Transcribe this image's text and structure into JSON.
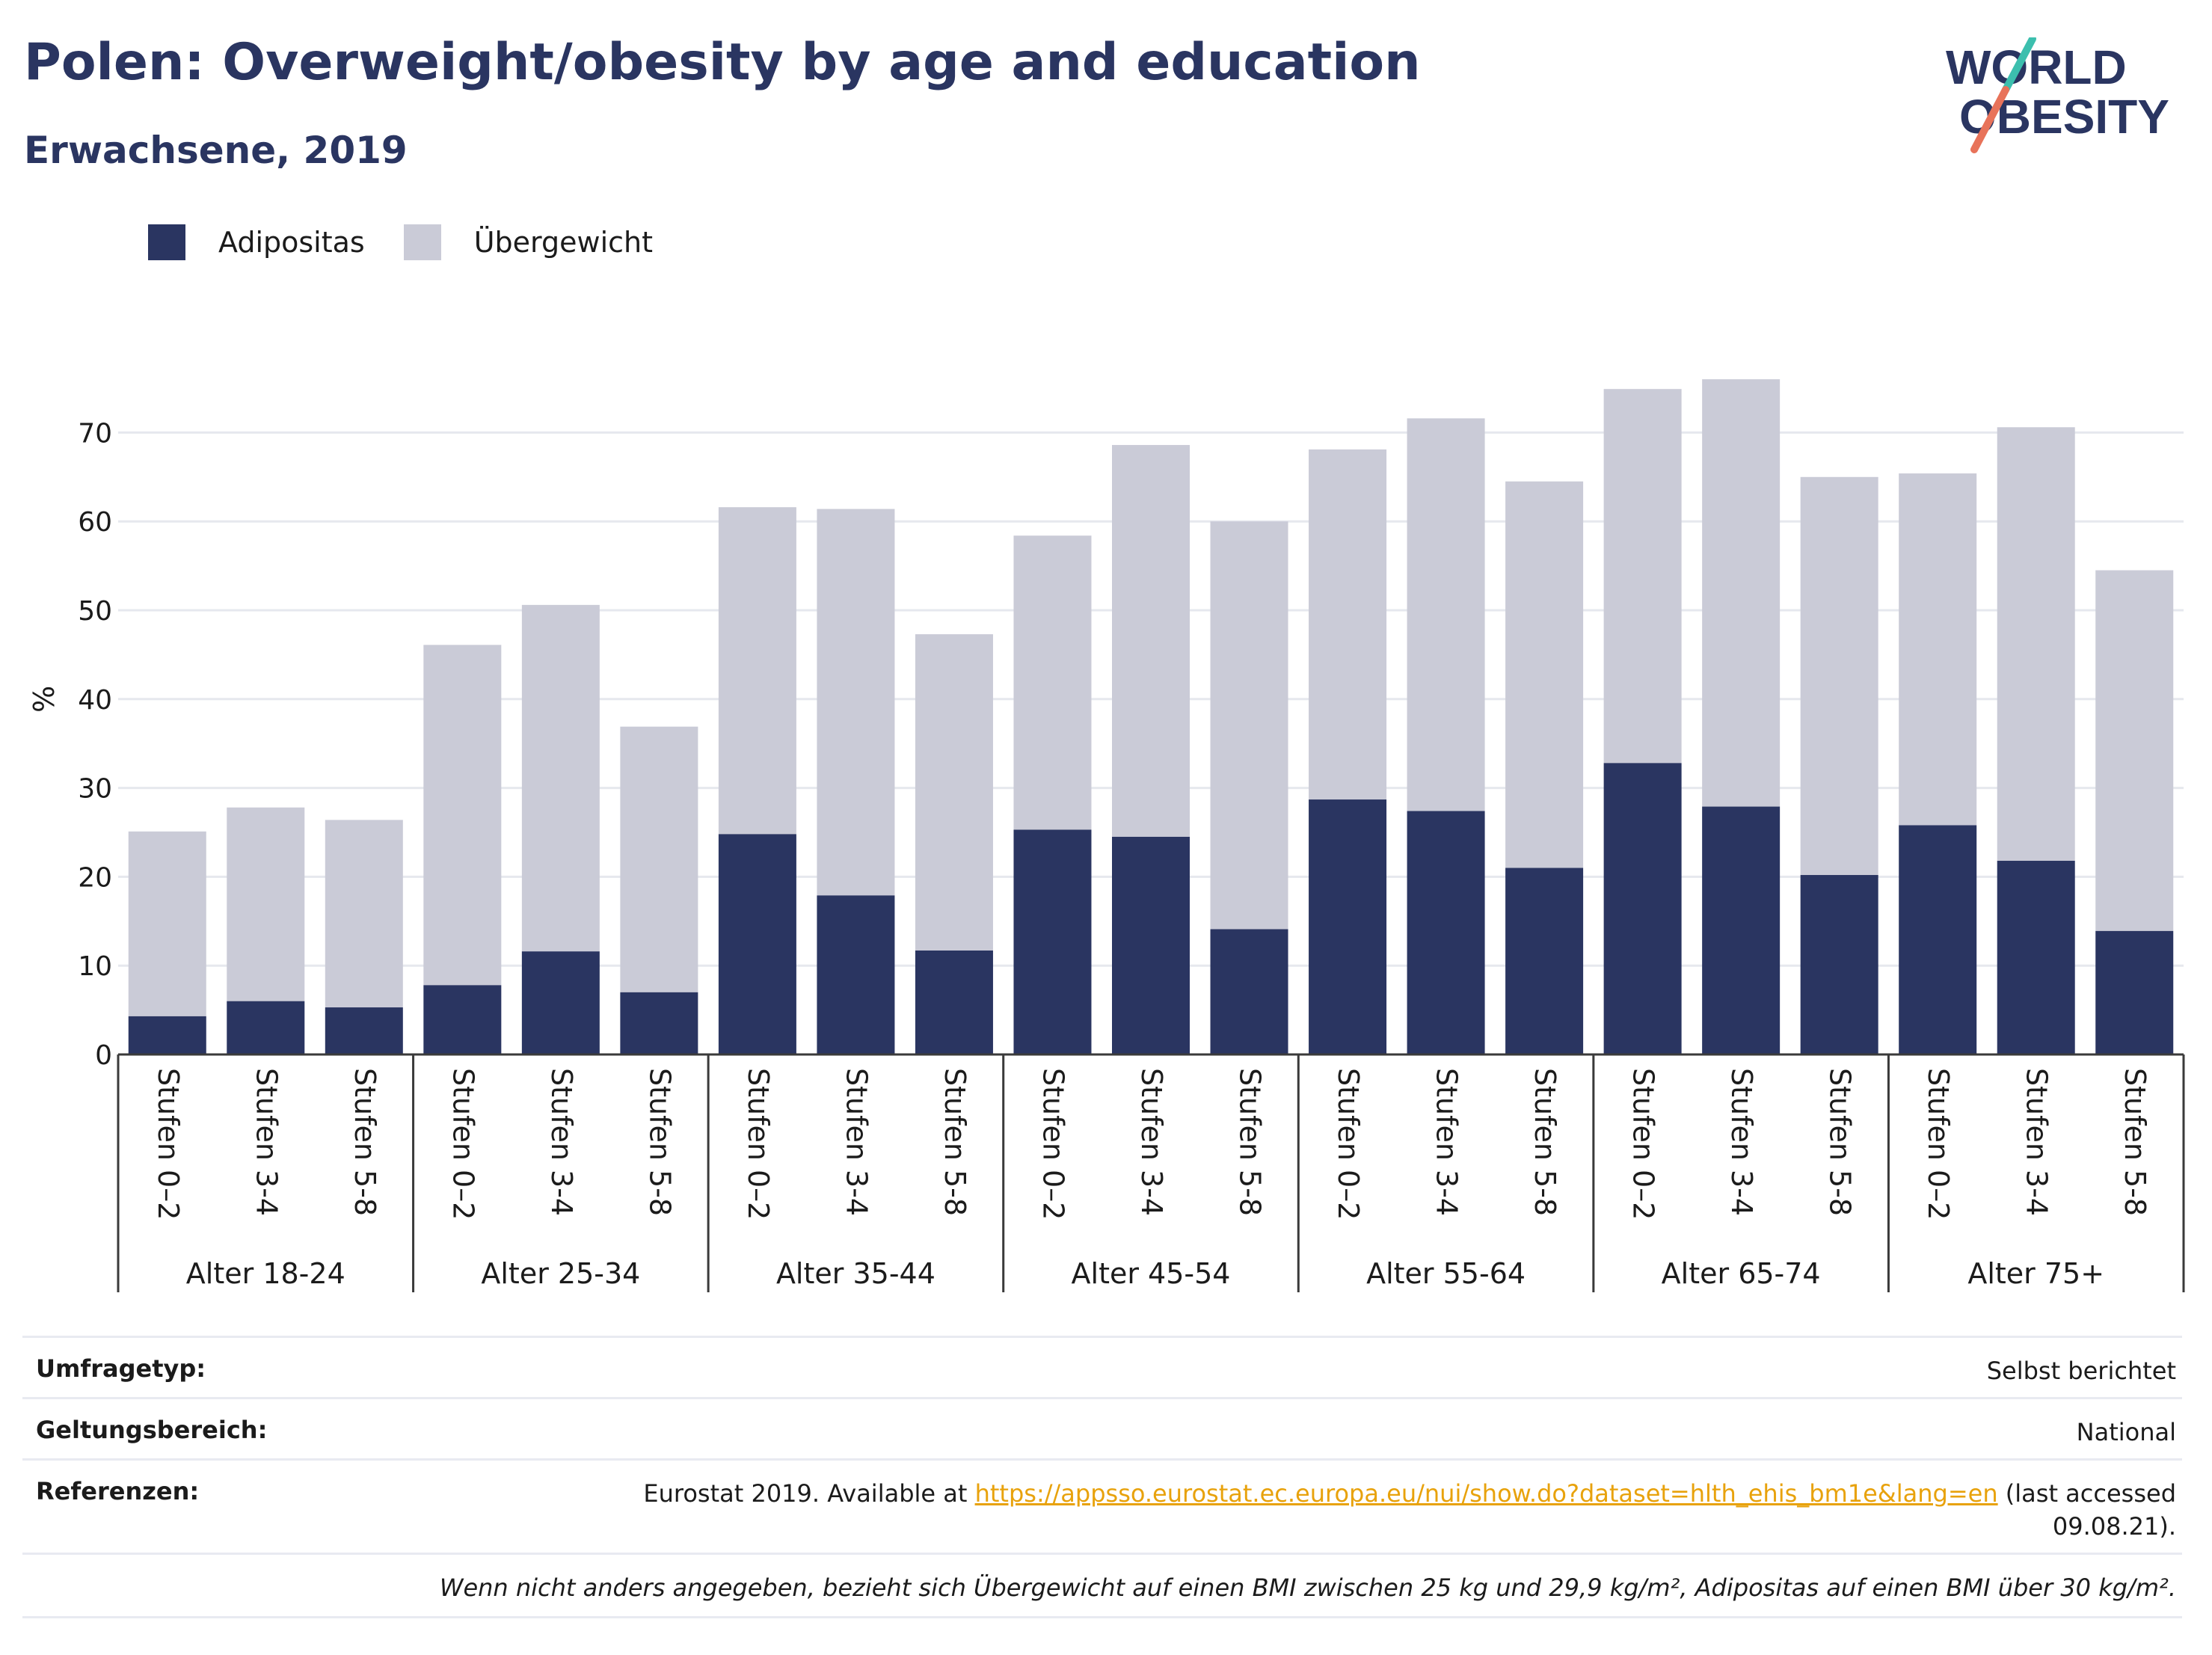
{
  "header": {
    "title": "Polen: Overweight/obesity by age and education",
    "subtitle": "Erwachsene, 2019"
  },
  "logo": {
    "line1": "WORLD",
    "line2": "OBESITY"
  },
  "colors": {
    "adipositas": "#2a3561",
    "uebergewicht": "#cacbd7",
    "accent_teal": "#3cbfae",
    "accent_red": "#e8735a",
    "link": "#e8a20c"
  },
  "legend": {
    "adipositas": "Adipositas",
    "uebergewicht": "Übergewicht"
  },
  "meta": {
    "survey_type_label": "Umfragetyp:",
    "survey_type_value": "Selbst berichtet",
    "coverage_label": "Geltungsbereich:",
    "coverage_value": "National",
    "references_label": "Referenzen:",
    "references_prefix": "Eurostat 2019. Available at ",
    "references_link": "https://appsso.eurostat.ec.europa.eu/nui/show.do?dataset=hlth_ehis_bm1e&lang=en",
    "references_suffix": " (last accessed",
    "references_suffix2": "09.08.21).",
    "footnote": "Wenn nicht anders angegeben, bezieht sich Übergewicht auf einen BMI zwischen 25 kg und 29,9 kg/m², Adipositas auf einen BMI über 30 kg/m²."
  },
  "chart_data": {
    "type": "bar",
    "stacked": true,
    "ylabel": "%",
    "ylim": [
      0,
      80
    ],
    "yticks": [
      0,
      10,
      20,
      30,
      40,
      50,
      60,
      70
    ],
    "grid": true,
    "legend_position": "top-left",
    "groups": [
      "Alter 18-24",
      "Alter 25-34",
      "Alter 35-44",
      "Alter 45-54",
      "Alter 55-64",
      "Alter 65-74",
      "Alter 75+"
    ],
    "subcategories": [
      "Stufen 0–2",
      "Stufen 3-4",
      "Stufen 5-8"
    ],
    "series": [
      {
        "name": "Adipositas",
        "values": [
          [
            4.3,
            6.0,
            5.3
          ],
          [
            7.8,
            11.6,
            7.0
          ],
          [
            24.8,
            17.9,
            11.7
          ],
          [
            25.3,
            24.5,
            14.1
          ],
          [
            28.7,
            27.4,
            21.0
          ],
          [
            32.8,
            27.9,
            20.2
          ],
          [
            25.8,
            21.8,
            13.9
          ]
        ]
      },
      {
        "name": "Übergewicht",
        "values": [
          [
            20.8,
            21.8,
            21.1
          ],
          [
            38.3,
            39.0,
            29.9
          ],
          [
            36.8,
            43.5,
            35.6
          ],
          [
            33.1,
            44.1,
            45.9
          ],
          [
            39.4,
            44.2,
            43.5
          ],
          [
            42.1,
            48.1,
            44.8
          ],
          [
            39.6,
            48.8,
            40.6
          ]
        ]
      }
    ]
  }
}
